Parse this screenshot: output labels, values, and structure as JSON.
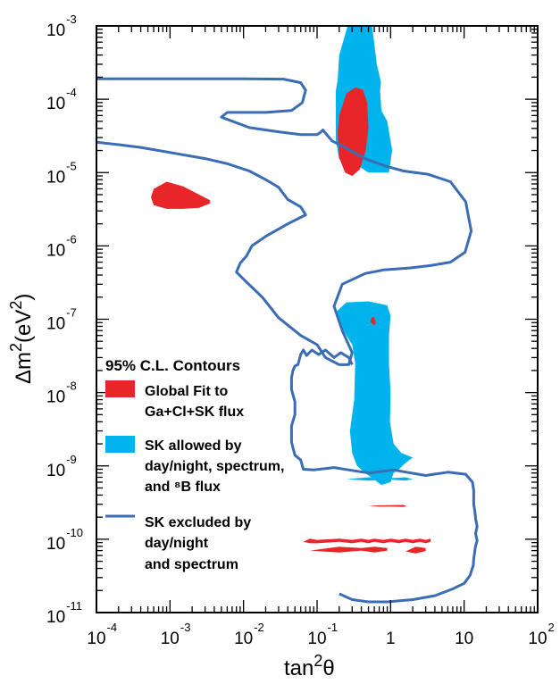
{
  "chart_data": {
    "type": "contour",
    "xlabel": {
      "base": "tan",
      "sup": "2",
      "sym": "θ"
    },
    "ylabel": {
      "base": "Δm",
      "sup": "2",
      "mid": "(eV",
      "sup2": "2",
      "end": ")"
    },
    "x_scale": "log",
    "y_scale": "log",
    "xlim": [
      0.0001,
      100
    ],
    "ylim": [
      1e-11,
      0.001
    ],
    "x_ticks": [
      {
        "base": "10",
        "exp": "-4"
      },
      {
        "base": "10",
        "exp": "-3"
      },
      {
        "base": "10",
        "exp": "-2"
      },
      {
        "base": "10",
        "exp": "-1"
      },
      {
        "base": "1",
        "exp": ""
      },
      {
        "base": "10",
        "exp": ""
      },
      {
        "base": "10",
        "exp": "2"
      }
    ],
    "y_ticks": [
      {
        "base": "10",
        "exp": "-3"
      },
      {
        "base": "10",
        "exp": "-4"
      },
      {
        "base": "10",
        "exp": "-5"
      },
      {
        "base": "10",
        "exp": "-6"
      },
      {
        "base": "10",
        "exp": "-7"
      },
      {
        "base": "10",
        "exp": "-8"
      },
      {
        "base": "10",
        "exp": "-9"
      },
      {
        "base": "10",
        "exp": "-10"
      },
      {
        "base": "10",
        "exp": "-11"
      }
    ],
    "legend": {
      "title": "95% C.L. Contours",
      "entries": [
        {
          "lines": [
            "Global Fit to",
            "Ga+Cl+SK flux"
          ],
          "color": "#e8262a",
          "kind": "patch"
        },
        {
          "lines": [
            "SK allowed by",
            "day/night, spectrum,",
            "and ⁸B flux"
          ],
          "color": "#00b3ec",
          "kind": "patch"
        },
        {
          "lines": [
            "SK excluded by",
            "day/night",
            "and spectrum"
          ],
          "color": "#3a6db5",
          "kind": "line"
        }
      ]
    },
    "series": [
      {
        "name": "Global Fit to Ga+Cl+SK flux",
        "color": "#e8262a",
        "regions": [
          {
            "x": [
              0.00055,
              0.0006,
              0.0009,
              0.0015,
              0.0025,
              0.0035,
              0.0035,
              0.0025,
              0.0015,
              0.0009,
              0.0006,
              0.00055
            ],
            "y": [
              4.6e-06,
              3.6e-06,
              3.2e-06,
              3.2e-06,
              3.3e-06,
              3.8e-06,
              4.2e-06,
              5e-06,
              6.5e-06,
              7.5e-06,
              6e-06,
              4.6e-06
            ]
          },
          {
            "x": [
              0.19,
              0.2,
              0.25,
              0.33,
              0.42,
              0.48,
              0.5,
              0.46,
              0.38,
              0.3,
              0.24,
              0.2,
              0.19
            ],
            "y": [
              3.5e-05,
              6e-05,
              0.00012,
              0.000145,
              0.000135,
              9e-05,
              4e-05,
              2e-05,
              1.1e-05,
              9e-06,
              1e-05,
              1.6e-05,
              3.5e-05
            ]
          },
          {
            "x": [
              0.53,
              0.6,
              0.63,
              0.6,
              0.55,
              0.53
            ],
            "y": [
              9.3e-08,
              8.2e-08,
              9e-08,
              1.07e-07,
              1.05e-07,
              9.3e-08
            ]
          },
          {
            "x": [
              0.5,
              0.7,
              1.0,
              1.5,
              1.65,
              1.5,
              1.0,
              0.7,
              0.5
            ],
            "y": [
              2.85e-10,
              2.78e-10,
              2.8e-10,
              2.75e-10,
              2.82e-10,
              2.93e-10,
              2.92e-10,
              2.9e-10,
              2.85e-10
            ]
          },
          {
            "x": [
              0.065,
              0.08,
              0.1,
              0.2,
              0.3,
              0.4,
              0.5,
              0.6,
              0.8,
              1.0,
              1.3,
              1.6,
              2.0,
              2.5,
              3.0,
              3.5,
              3.5,
              3.0,
              2.5,
              2.0,
              1.6,
              1.3,
              1.0,
              0.8,
              0.6,
              0.5,
              0.4,
              0.3,
              0.2,
              0.1,
              0.08,
              0.065
            ],
            "y": [
              9.2e-11,
              8.8e-11,
              8.8e-11,
              9.2e-11,
              8.8e-11,
              9.2e-11,
              8.8e-11,
              9.2e-11,
              8.8e-11,
              9.2e-11,
              8.8e-11,
              9.2e-11,
              8.8e-11,
              9.2e-11,
              8.8e-11,
              9.2e-11,
              1.02e-10,
              9.8e-11,
              1.02e-10,
              9.8e-11,
              1.02e-10,
              9.8e-11,
              1.02e-10,
              9.8e-11,
              1.02e-10,
              9.8e-11,
              1.02e-10,
              9.8e-11,
              1.02e-10,
              9.8e-11,
              1.02e-10,
              9.2e-11
            ]
          },
          {
            "x": [
              0.08,
              0.2,
              0.4,
              0.6,
              0.9,
              0.9,
              0.6,
              0.4,
              0.2,
              0.08
            ],
            "y": [
              7e-11,
              6.6e-11,
              7e-11,
              6.6e-11,
              7e-11,
              7.6e-11,
              7.9e-11,
              7.6e-11,
              7.9e-11,
              7e-11
            ]
          },
          {
            "x": [
              1.6,
              2.2,
              3.0,
              3.0,
              2.2,
              1.6
            ],
            "y": [
              6.8e-11,
              6.4e-11,
              6.9e-11,
              7.6e-11,
              7.9e-11,
              6.8e-11
            ]
          }
        ]
      },
      {
        "name": "SK allowed by day/night, spectrum, and 8B flux",
        "color": "#00b3ec",
        "regions": [
          {
            "x": [
              0.18,
              0.2,
              0.27,
              0.5,
              0.95,
              1.05,
              0.9,
              0.75,
              0.72,
              0.74,
              0.65,
              0.56,
              0.26,
              0.2,
              0.19,
              0.18,
              0.18
            ],
            "y": [
              2.8e-05,
              1.5e-05,
              1.5e-05,
              1e-05,
              1e-05,
              2e-05,
              5e-05,
              7e-05,
              0.00013,
              0.00017,
              0.0003,
              0.001,
              0.001,
              0.0004,
              0.00018,
              0.00013,
              2.8e-05
            ]
          },
          {
            "x": [
              0.18,
              0.25,
              0.5,
              0.9,
              1.0,
              0.95,
              0.95,
              1.0,
              0.98,
              1.1,
              1.4,
              2.0,
              1.6,
              1.3,
              1.1,
              1.0,
              0.75,
              0.6,
              0.45,
              0.35,
              0.3,
              0.28,
              0.32,
              0.33,
              0.3,
              0.25,
              0.22,
              0.19,
              0.18
            ],
            "y": [
              1.25e-07,
              1.7e-07,
              1.75e-07,
              1.55e-07,
              1.1e-07,
              6e-08,
              2.5e-08,
              1e-08,
              4e-09,
              2e-09,
              1.5e-09,
              1.3e-09,
              1.1e-09,
              9e-10,
              8e-10,
              6e-10,
              5.5e-10,
              6.5e-10,
              8e-10,
              1e-09,
              1.5e-09,
              3e-09,
              8e-09,
              2.5e-08,
              4.5e-08,
              6e-08,
              7.5e-08,
              9.5e-08,
              1.25e-07
            ]
          },
          {
            "x": [
              0.25,
              0.5,
              1.0,
              1.6,
              2.0,
              1.6,
              1.0,
              0.5,
              0.25
            ],
            "y": [
              6.6e-10,
              6.3e-10,
              6.5e-10,
              6.3e-10,
              6.6e-10,
              7e-10,
              6.8e-10,
              7e-10,
              6.6e-10
            ]
          }
        ]
      },
      {
        "name": "SK excluded by day/night and spectrum",
        "color": "#3a6db5",
        "regions": [
          {
            "x": [
              0.0001,
              0.001,
              0.01,
              0.035,
              0.06,
              0.07,
              0.063,
              0.045,
              0.02,
              0.006,
              0.005,
              0.012,
              0.03,
              0.06,
              0.1,
              0.11,
              0.12,
              0.16,
              0.25,
              0.45,
              0.85,
              1.5,
              3.2,
              6.5,
              10.5,
              12.5,
              10.3,
              6.5,
              3.5,
              1.8,
              0.8,
              0.45,
              0.22,
              0.17,
              0.22,
              0.3,
              0.27,
              0.2,
              0.13,
              0.1,
              0.06,
              0.03,
              0.018,
              0.011,
              0.008,
              0.009,
              0.011,
              0.013,
              0.02,
              0.04,
              0.07,
              0.06,
              0.04,
              0.03,
              0.02,
              0.012,
              0.006,
              0.003,
              0.0015,
              0.0008,
              0.0004,
              0.0002,
              0.0001
            ],
            "y": [
              0.00019,
              0.00019,
              0.00019,
              0.000188,
              0.000168,
              0.000133,
              9e-05,
              7e-05,
              6.6e-05,
              6.6e-05,
              5.7e-05,
              4.1e-05,
              3.6e-05,
              3.3e-05,
              3.3e-05,
              3.5e-05,
              3.8e-05,
              2.7e-05,
              2.15e-05,
              1.55e-05,
              1.23e-05,
              1.05e-05,
              9.5e-06,
              7.5e-06,
              4e-06,
              1.6e-06,
              8.2e-07,
              6e-07,
              5.4e-07,
              5e-07,
              4.7e-07,
              4.2e-07,
              3e-07,
              1.5e-07,
              7e-08,
              3.5e-08,
              2.4e-08,
              2.4e-08,
              3e-08,
              4.5e-08,
              6e-08,
              1.05e-07,
              2e-07,
              3.2e-07,
              4.4e-07,
              5.8e-07,
              7.3e-07,
              1e-06,
              1.35e-06,
              2e-06,
              2.65e-06,
              3.4e-06,
              4.3e-06,
              6.3e-06,
              8e-06,
              1.05e-05,
              1.32e-05,
              1.55e-05,
              1.75e-05,
              1.95e-05,
              2.2e-05,
              2.4e-05,
              2.6e-05
            ]
          },
          {
            "x": [
              0.3,
              0.27,
              0.21,
              0.17,
              0.13,
              0.105,
              0.085,
              0.072,
              0.065,
              0.06,
              0.055,
              0.05,
              0.047,
              0.045,
              0.045,
              0.05,
              0.05,
              0.045,
              0.045,
              0.05,
              0.06,
              0.065,
              0.09,
              0.17,
              0.5,
              1.1,
              3.0,
              6.0,
              10.5,
              13.0,
              13.5,
              13.5,
              13.5,
              14.0,
              14.3,
              15.0,
              14.3,
              15.0,
              14.2,
              13.8,
              13.5,
              13.3,
              12.5,
              12.0,
              10.0,
              7.0,
              4.0,
              2.0,
              0.9,
              0.5,
              0.3,
              0.2
            ],
            "y": [
              2.4e-08,
              3e-08,
              3.5e-08,
              3e-08,
              3.8e-08,
              3.3e-08,
              3.8e-08,
              3.2e-08,
              3.8e-08,
              3.3e-08,
              2.4e-08,
              2.3e-08,
              2e-08,
              1.6e-08,
              1.1e-08,
              7.5e-09,
              5e-09,
              3.5e-09,
              2.1e-09,
              1.4e-09,
              1.2e-09,
              9e-10,
              8.8e-10,
              9.5e-10,
              8e-10,
              8.8e-10,
              7.4e-10,
              8.2e-10,
              7.7e-10,
              6e-10,
              4.6e-10,
              3.7e-10,
              3e-10,
              2.4e-10,
              1.9e-10,
              1.5e-10,
              1.2e-10,
              9.6e-11,
              7.8e-11,
              6.3e-11,
              5.4e-11,
              4.4e-11,
              3.6e-11,
              3.2e-11,
              2.5e-11,
              2.1e-11,
              1.7e-11,
              1.5e-11,
              1.4e-11,
              1.4e-11,
              1.5e-11,
              1.8e-11
            ]
          }
        ]
      }
    ]
  }
}
